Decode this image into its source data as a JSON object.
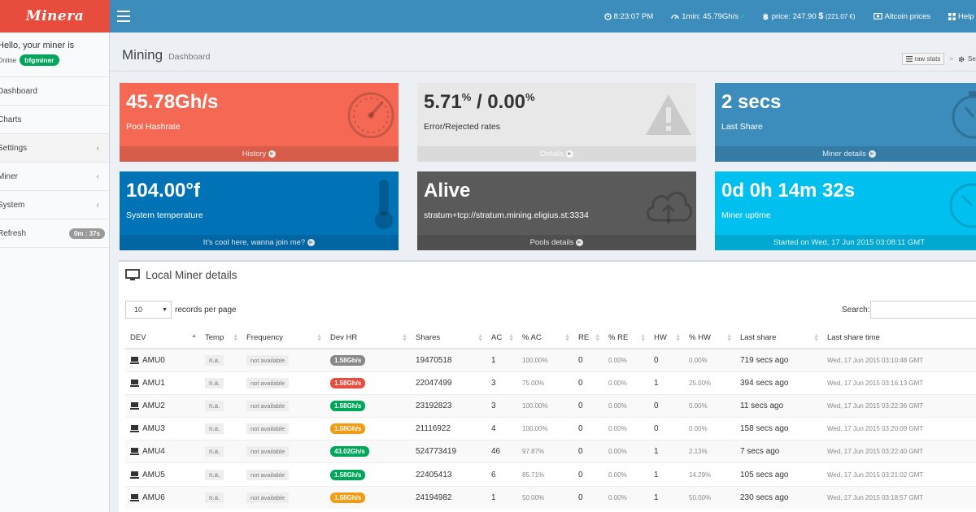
{
  "app": {
    "logo": "Minera"
  },
  "topbar": {
    "time": "8:23:07 PM",
    "hashrate_label": "1min:",
    "hashrate_value": "45.79Gh/s",
    "price_label": "price:",
    "price_value": "247.90",
    "price_currency": "$",
    "price_eur": "(221.07 €)",
    "altcoin_label": "Altcoin prices",
    "help_label": "Help"
  },
  "sidebar": {
    "greeting": "Hello, your miner is",
    "status": "Online",
    "miner_name": "bfgminer",
    "items": [
      {
        "label": "Dashboard"
      },
      {
        "label": "Charts"
      },
      {
        "label": "Settings",
        "chevron": "‹"
      },
      {
        "label": "Miner",
        "chevron": "‹"
      },
      {
        "label": "System",
        "chevron": "‹"
      },
      {
        "label": "Refresh",
        "badge": "0m : 37s"
      }
    ]
  },
  "header": {
    "title": "Mining",
    "subtitle": "Dashboard",
    "raw_stats": "raw stats",
    "separator": ">",
    "settings": "Settings"
  },
  "boxes": [
    {
      "value": "45.78Gh/s",
      "label": "Pool Hashrate",
      "footer": "History",
      "color": "#f56954",
      "icon": "speedometer-icon"
    },
    {
      "value_a": "5.71",
      "unit_a": "%",
      "value_sep": " / ",
      "value_b": "0.00",
      "unit_b": "%",
      "label": "Error/Rejected rates",
      "footer": "Details",
      "color": "#e8e8e8",
      "icon": "warning-icon"
    },
    {
      "value": "2 secs",
      "label": "Last Share",
      "footer": "Miner details",
      "color": "#3c8dbc",
      "icon": "stopwatch-icon"
    },
    {
      "value": "104.00°f",
      "label": "System temperature",
      "footer": "It's cool here, wanna join me?",
      "color": "#0073b7",
      "icon": "thermometer-icon"
    },
    {
      "value": "Alive",
      "label": "stratum+tcp://stratum.mining.eligius.st:3334",
      "footer": "Pools details",
      "color": "#5a5a5a",
      "icon": "cloud-upload-icon"
    },
    {
      "value": "0d 0h 14m 32s",
      "label": "Miner uptime",
      "footer": "Started on Wed, 17 Jun 2015 03:08:11 GMT",
      "color": "#00c0ef",
      "icon": "timer-icon"
    }
  ],
  "table_panel": {
    "title": "Local Miner details",
    "records_value": "10",
    "records_label": "records per page",
    "search_label": "Search:",
    "columns": [
      "DEV",
      "Temp",
      "Frequency",
      "Dev HR",
      "Shares",
      "AC",
      "% AC",
      "RE",
      "% RE",
      "HW",
      "% HW",
      "Last share",
      "Last share time"
    ],
    "rows": [
      {
        "dev": "AMU0",
        "temp": "n.a.",
        "freq": "not available",
        "hr": "1.58Gh/s",
        "hr_color": "#888888",
        "shares": "19470518",
        "ac": "1",
        "pac": "100.00%",
        "re": "0",
        "pre": "0.00%",
        "hw": "0",
        "phw": "0.00%",
        "last": "719 secs ago",
        "time": "Wed, 17 Jun 2015 03:10:48 GMT"
      },
      {
        "dev": "AMU1",
        "temp": "n.a.",
        "freq": "not available",
        "hr": "1.58Gh/s",
        "hr_color": "#e74c3c",
        "shares": "22047499",
        "ac": "3",
        "pac": "75.00%",
        "re": "0",
        "pre": "0.00%",
        "hw": "1",
        "phw": "25.00%",
        "last": "394 secs ago",
        "time": "Wed, 17 Jun 2015 03:16:13 GMT"
      },
      {
        "dev": "AMU2",
        "temp": "n.a.",
        "freq": "not available",
        "hr": "1.58Gh/s",
        "hr_color": "#00a65a",
        "shares": "23192823",
        "ac": "3",
        "pac": "100.00%",
        "re": "0",
        "pre": "0.00%",
        "hw": "0",
        "phw": "0.00%",
        "last": "11 secs ago",
        "time": "Wed, 17 Jun 2015 03:22:36 GMT"
      },
      {
        "dev": "AMU3",
        "temp": "n.a.",
        "freq": "not available",
        "hr": "1.58Gh/s",
        "hr_color": "#f39c12",
        "shares": "21116922",
        "ac": "4",
        "pac": "100.00%",
        "re": "0",
        "pre": "0.00%",
        "hw": "0",
        "phw": "0.00%",
        "last": "158 secs ago",
        "time": "Wed, 17 Jun 2015 03:20:09 GMT"
      },
      {
        "dev": "AMU4",
        "temp": "n.a.",
        "freq": "not available",
        "hr": "43.02Gh/s",
        "hr_color": "#00a65a",
        "shares": "524773419",
        "ac": "46",
        "pac": "97.87%",
        "re": "0",
        "pre": "0.00%",
        "hw": "1",
        "phw": "2.13%",
        "last": "7 secs ago",
        "time": "Wed, 17 Jun 2015 03:22:40 GMT"
      },
      {
        "dev": "AMU5",
        "temp": "n.a.",
        "freq": "not available",
        "hr": "1.58Gh/s",
        "hr_color": "#00a65a",
        "shares": "22405413",
        "ac": "6",
        "pac": "85.71%",
        "re": "0",
        "pre": "0.00%",
        "hw": "1",
        "phw": "14.29%",
        "last": "105 secs ago",
        "time": "Wed, 17 Jun 2015 03:21:02 GMT"
      },
      {
        "dev": "AMU6",
        "temp": "n.a.",
        "freq": "not available",
        "hr": "1.58Gh/s",
        "hr_color": "#f39c12",
        "shares": "24194982",
        "ac": "1",
        "pac": "50.00%",
        "re": "0",
        "pre": "0.00%",
        "hw": "1",
        "phw": "50.00%",
        "last": "230 secs ago",
        "time": "Wed, 17 Jun 2015 03:18:57 GMT"
      }
    ]
  }
}
